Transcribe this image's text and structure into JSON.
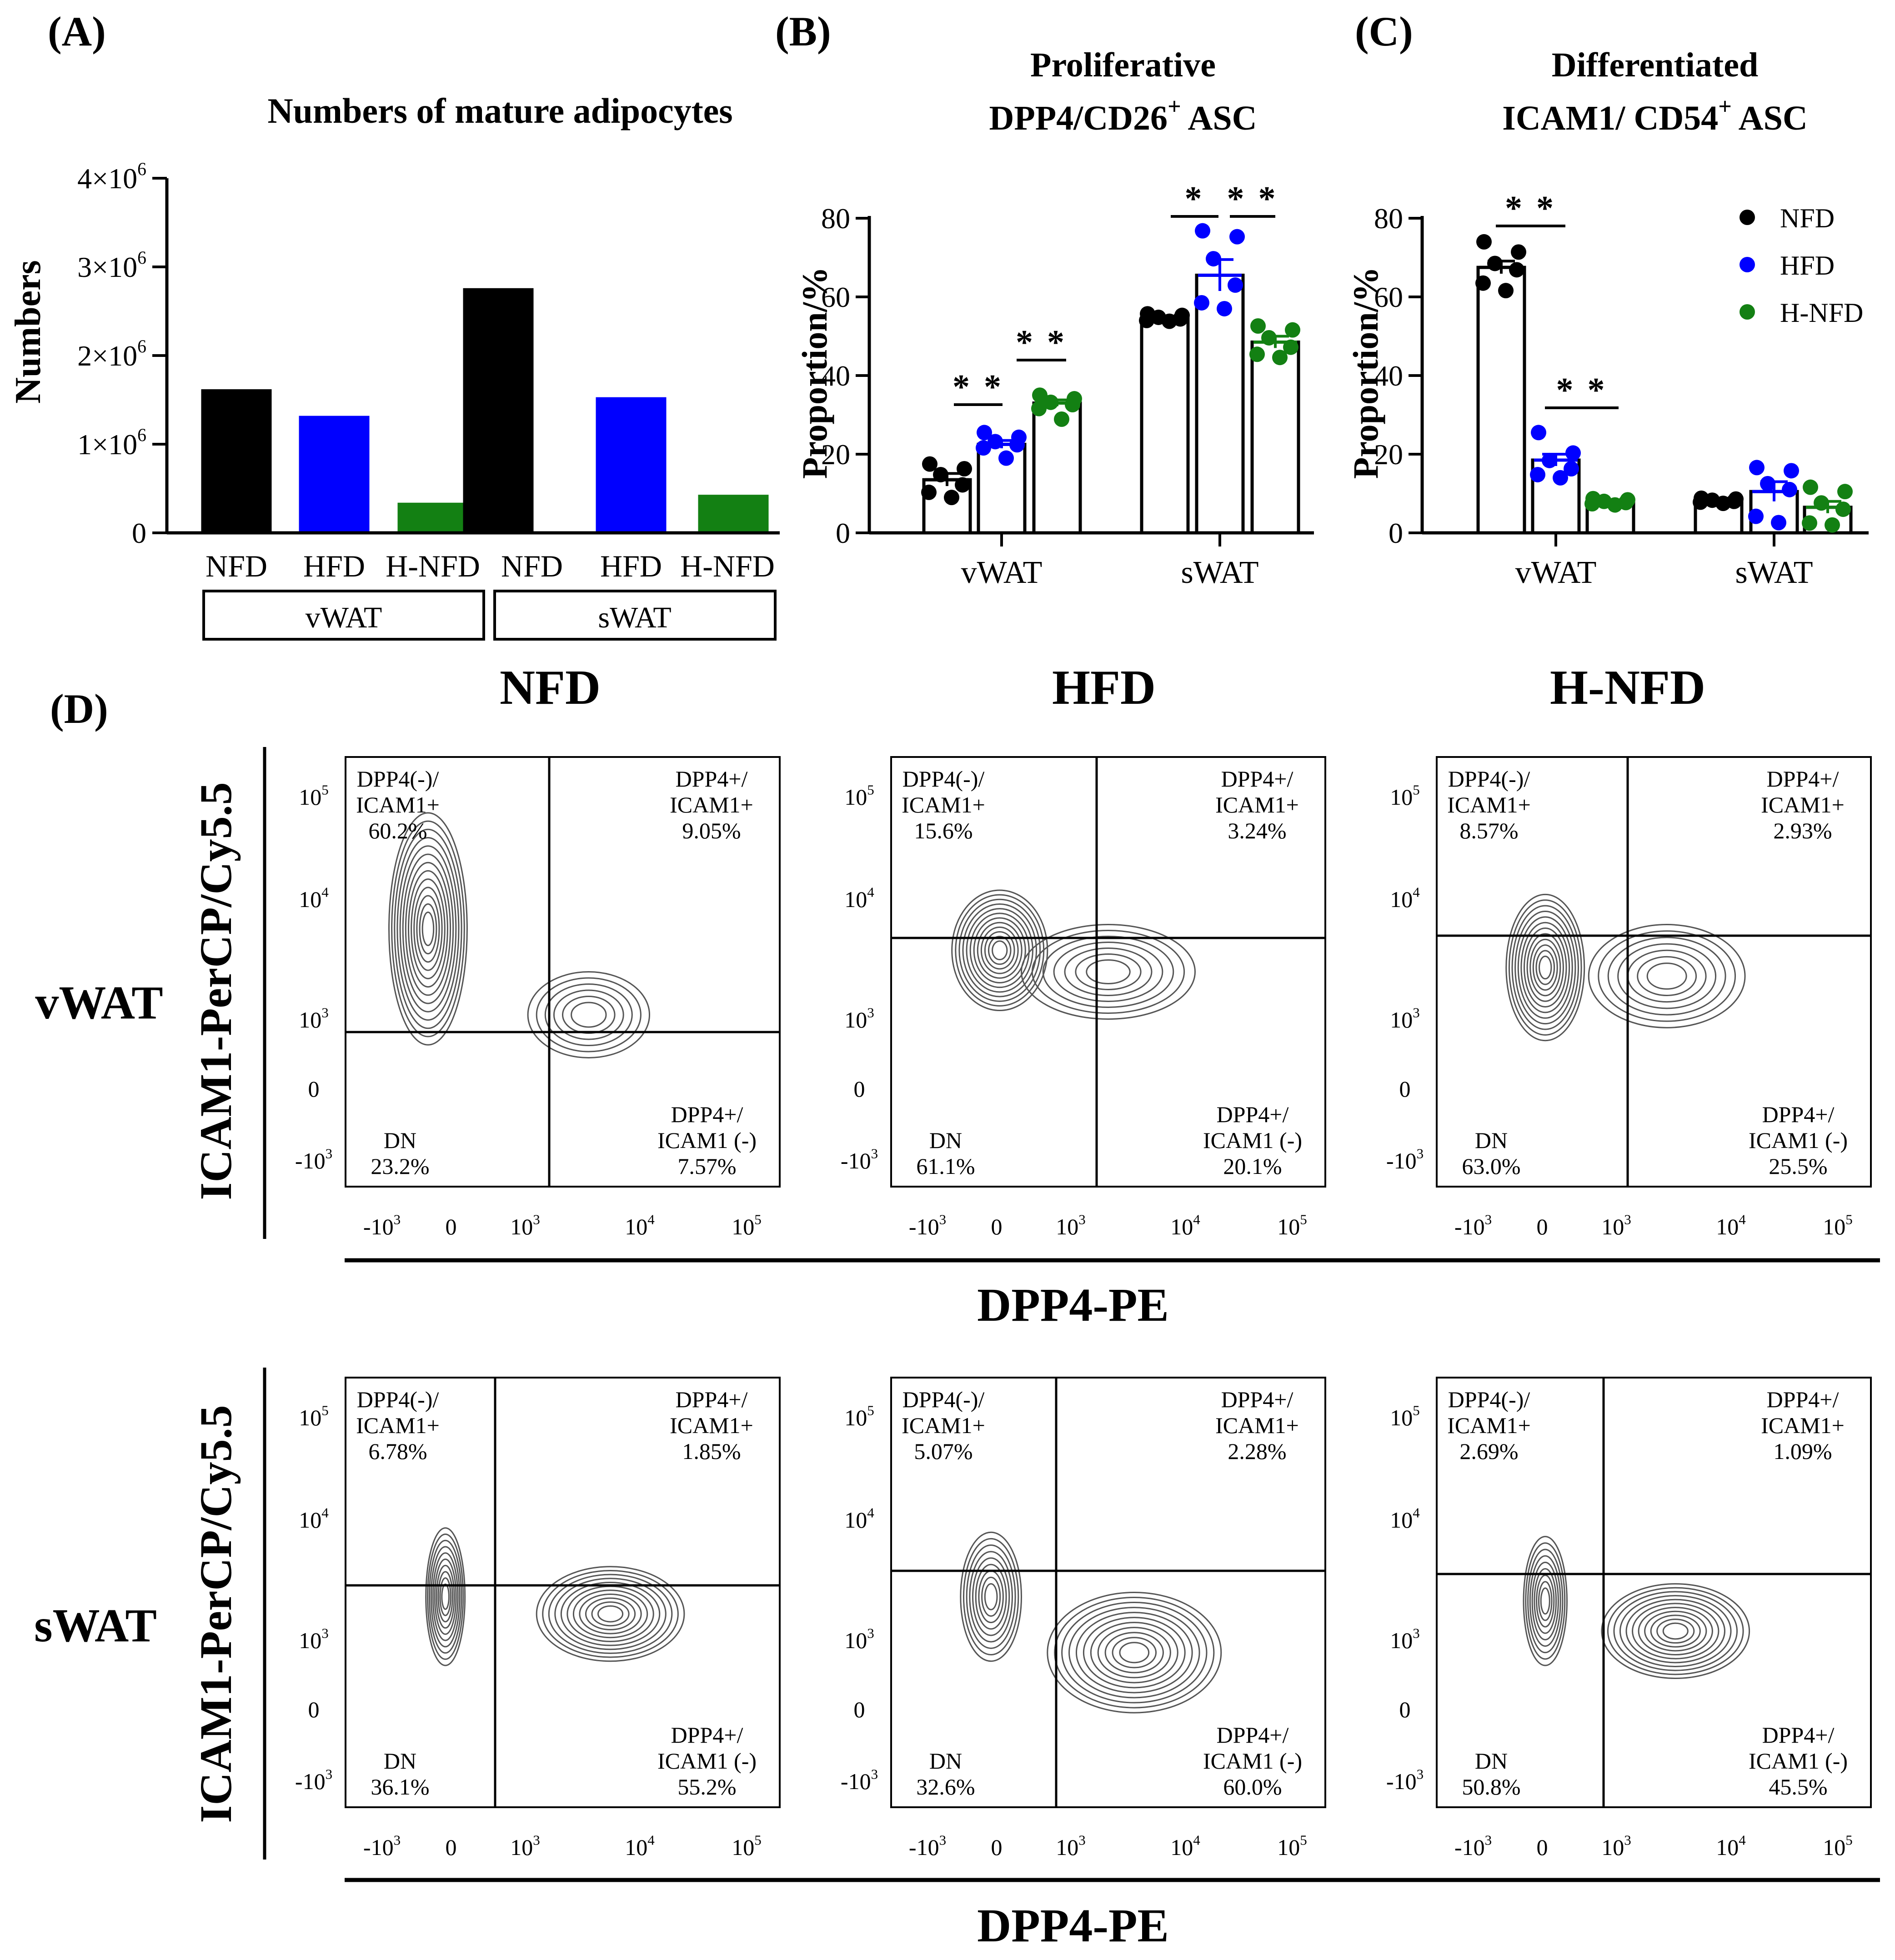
{
  "colors": {
    "NFD": "#000000",
    "HFD": "#0000FF",
    "H-NFD": "#138013",
    "axis": "#000000",
    "contour": "#555555"
  },
  "panel_a": {
    "tag": "(A)",
    "title": "Numbers of mature adipocytes",
    "y_label": "Numbers",
    "y_ticks": [
      {
        "value": 0,
        "base": "0",
        "exp": ""
      },
      {
        "value": 1000000,
        "base": "1×10",
        "exp": "6"
      },
      {
        "value": 2000000,
        "base": "2×10",
        "exp": "6"
      },
      {
        "value": 3000000,
        "base": "3×10",
        "exp": "6"
      },
      {
        "value": 4000000,
        "base": "4×10",
        "exp": "6"
      }
    ],
    "group_labels": [
      "vWAT",
      "sWAT"
    ]
  },
  "panel_b": {
    "tag": "(B)",
    "title_line1": "Proliferative",
    "title_line2_main": "DPP4/CD26",
    "title_line2_sup": "+",
    "title_line2_tail": " ASC",
    "y_label": "Proportion/%",
    "y_ticks": [
      "0",
      "20",
      "40",
      "60",
      "80"
    ],
    "sig_marks": [
      "* *",
      "* *",
      "*",
      "* *"
    ]
  },
  "panel_c": {
    "tag": "(C)",
    "title_line1": "Differentiated",
    "title_line2_main": "ICAM1/ CD54",
    "title_line2_sup": "+",
    "title_line2_tail": " ASC",
    "y_label": "Proportion/%",
    "y_ticks": [
      "0",
      "20",
      "40",
      "60",
      "80"
    ],
    "sig_marks": [
      "* *",
      "* *"
    ],
    "legend": [
      "NFD",
      "HFD",
      "H-NFD"
    ]
  },
  "panel_d": {
    "tag": "(D)",
    "column_titles": [
      "NFD",
      "HFD",
      "H-NFD"
    ],
    "row_titles": [
      "vWAT",
      "sWAT"
    ],
    "y_axis_title": "ICAM1-PerCP/Cy5.5",
    "x_axis_title": "DPP4-PE",
    "y_tick_labels": [
      {
        "base": "10",
        "exp": "5"
      },
      {
        "base": "10",
        "exp": "4"
      },
      {
        "base": "10",
        "exp": "3"
      },
      {
        "base": "0",
        "exp": ""
      },
      {
        "base": "-10",
        "exp": "3"
      }
    ],
    "x_tick_labels": [
      {
        "base": "-10",
        "exp": "3"
      },
      {
        "base": "0",
        "exp": ""
      },
      {
        "base": "10",
        "exp": "3"
      },
      {
        "base": "10",
        "exp": "4"
      },
      {
        "base": "10",
        "exp": "5"
      }
    ],
    "quadrant_names": {
      "top_left": [
        "DPP4(-)/",
        "ICAM1+"
      ],
      "top_right": [
        "DPP4+/",
        "ICAM1+"
      ],
      "bottom_left": [
        "DN"
      ],
      "bottom_right": [
        "DPP4+/",
        "ICAM1 (-)"
      ]
    }
  },
  "chart_data": [
    {
      "type": "bar",
      "panel": "A",
      "title": "Numbers of mature adipocytes",
      "ylabel": "Numbers",
      "ylim": [
        0,
        4000000
      ],
      "categories": [
        "NFD",
        "HFD",
        "H-NFD",
        "NFD",
        "HFD",
        "H-NFD"
      ],
      "groups": [
        "vWAT",
        "vWAT",
        "vWAT",
        "sWAT",
        "sWAT",
        "sWAT"
      ],
      "values": [
        1620000,
        1320000,
        340000,
        2760000,
        1530000,
        430000
      ]
    },
    {
      "type": "bar",
      "panel": "B",
      "title": "Proliferative DPP4/CD26+ ASC",
      "ylabel": "Proportion/%",
      "ylim": [
        0,
        80
      ],
      "categories": [
        "vWAT",
        "sWAT"
      ],
      "series": [
        {
          "name": "NFD",
          "means": [
            13.5,
            54.5
          ],
          "sem": [
            1.6,
            0.4
          ],
          "points": [
            [
              17.5,
              16.3,
              14.8,
              12.2,
              10.3,
              9.0
            ],
            [
              55.7,
              55.3,
              54.8,
              54.4,
              54.0,
              53.8
            ]
          ]
        },
        {
          "name": "HFD",
          "means": [
            22.5,
            65.5
          ],
          "sem": [
            1.0,
            4.0
          ],
          "points": [
            [
              25.5,
              24.3,
              23.2,
              22.4,
              21.6,
              19.0
            ],
            [
              76.8,
              75.3,
              69.7,
              63.0,
              58.5,
              57.0
            ]
          ]
        },
        {
          "name": "H-NFD",
          "means": [
            33.0,
            48.5
          ],
          "sem": [
            0.8,
            1.5
          ],
          "points": [
            [
              35.0,
              34.1,
              33.2,
              32.6,
              31.6,
              28.9
            ],
            [
              52.6,
              51.6,
              49.6,
              47.2,
              45.4,
              44.6
            ]
          ]
        }
      ],
      "significance": [
        {
          "label": "* *",
          "group": "vWAT",
          "between": [
            "NFD",
            "HFD"
          ]
        },
        {
          "label": "* *",
          "group": "vWAT",
          "between": [
            "HFD",
            "H-NFD"
          ]
        },
        {
          "label": "*",
          "group": "sWAT",
          "between": [
            "NFD",
            "HFD"
          ]
        },
        {
          "label": "* *",
          "group": "sWAT",
          "between": [
            "HFD",
            "H-NFD"
          ]
        }
      ]
    },
    {
      "type": "bar",
      "panel": "C",
      "title": "Differentiated ICAM1/ CD54+ ASC",
      "ylabel": "Proportion/%",
      "ylim": [
        0,
        80
      ],
      "categories": [
        "vWAT",
        "sWAT"
      ],
      "legend": [
        "NFD",
        "HFD",
        "H-NFD"
      ],
      "series": [
        {
          "name": "NFD",
          "means": [
            67.5,
            8.0
          ],
          "sem": [
            1.6,
            0.3
          ],
          "points": [
            [
              74.0,
              71.4,
              68.5,
              66.9,
              63.5,
              61.6
            ],
            [
              8.8,
              8.6,
              8.3,
              8.0,
              7.8,
              7.5
            ]
          ]
        },
        {
          "name": "HFD",
          "means": [
            18.5,
            10.5
          ],
          "sem": [
            1.5,
            2.5
          ],
          "points": [
            [
              25.5,
              20.3,
              18.4,
              16.3,
              14.8,
              14.0
            ],
            [
              16.6,
              15.8,
              12.5,
              11.0,
              4.2,
              2.6
            ]
          ]
        },
        {
          "name": "H-NFD",
          "means": [
            8.0,
            6.5
          ],
          "sem": [
            0.3,
            1.5
          ],
          "points": [
            [
              8.7,
              8.4,
              8.0,
              7.7,
              7.4,
              7.1
            ],
            [
              11.6,
              10.5,
              7.6,
              6.0,
              2.5,
              2.0
            ]
          ]
        }
      ],
      "significance": [
        {
          "label": "* *",
          "group": "vWAT",
          "between": [
            "NFD",
            "HFD"
          ]
        },
        {
          "label": "* *",
          "group": "vWAT",
          "between": [
            "HFD",
            "H-NFD"
          ]
        }
      ]
    },
    {
      "type": "contour",
      "panel": "D",
      "xlabel": "DPP4-PE",
      "ylabel": "ICAM1-PerCP/Cy5.5",
      "plots": [
        {
          "tissue": "vWAT",
          "diet": "NFD",
          "quadrants": {
            "DPP4(-)/ICAM1+": "60.2%",
            "DPP4+/ICAM1+": "9.05%",
            "DN": "23.2%",
            "DPP4+/ICAM1 (-)": "7.57%"
          }
        },
        {
          "tissue": "vWAT",
          "diet": "HFD",
          "quadrants": {
            "DPP4(-)/ICAM1+": "15.6%",
            "DPP4+/ICAM1+": "3.24%",
            "DN": "61.1%",
            "DPP4+/ICAM1 (-)": "20.1%"
          }
        },
        {
          "tissue": "vWAT",
          "diet": "H-NFD",
          "quadrants": {
            "DPP4(-)/ICAM1+": "8.57%",
            "DPP4+/ICAM1+": "2.93%",
            "DN": "63.0%",
            "DPP4+/ICAM1 (-)": "25.5%"
          }
        },
        {
          "tissue": "sWAT",
          "diet": "NFD",
          "quadrants": {
            "DPP4(-)/ICAM1+": "6.78%",
            "DPP4+/ICAM1+": "1.85%",
            "DN": "36.1%",
            "DPP4+/ICAM1 (-)": "55.2%"
          }
        },
        {
          "tissue": "sWAT",
          "diet": "HFD",
          "quadrants": {
            "DPP4(-)/ICAM1+": "5.07%",
            "DPP4+/ICAM1+": "2.28%",
            "DN": "32.6%",
            "DPP4+/ICAM1 (-)": "60.0%"
          }
        },
        {
          "tissue": "sWAT",
          "diet": "H-NFD",
          "quadrants": {
            "DPP4(-)/ICAM1+": "2.69%",
            "DPP4+/ICAM1+": "1.09%",
            "DN": "50.8%",
            "DPP4+/ICAM1 (-)": "45.5%"
          }
        }
      ]
    }
  ]
}
